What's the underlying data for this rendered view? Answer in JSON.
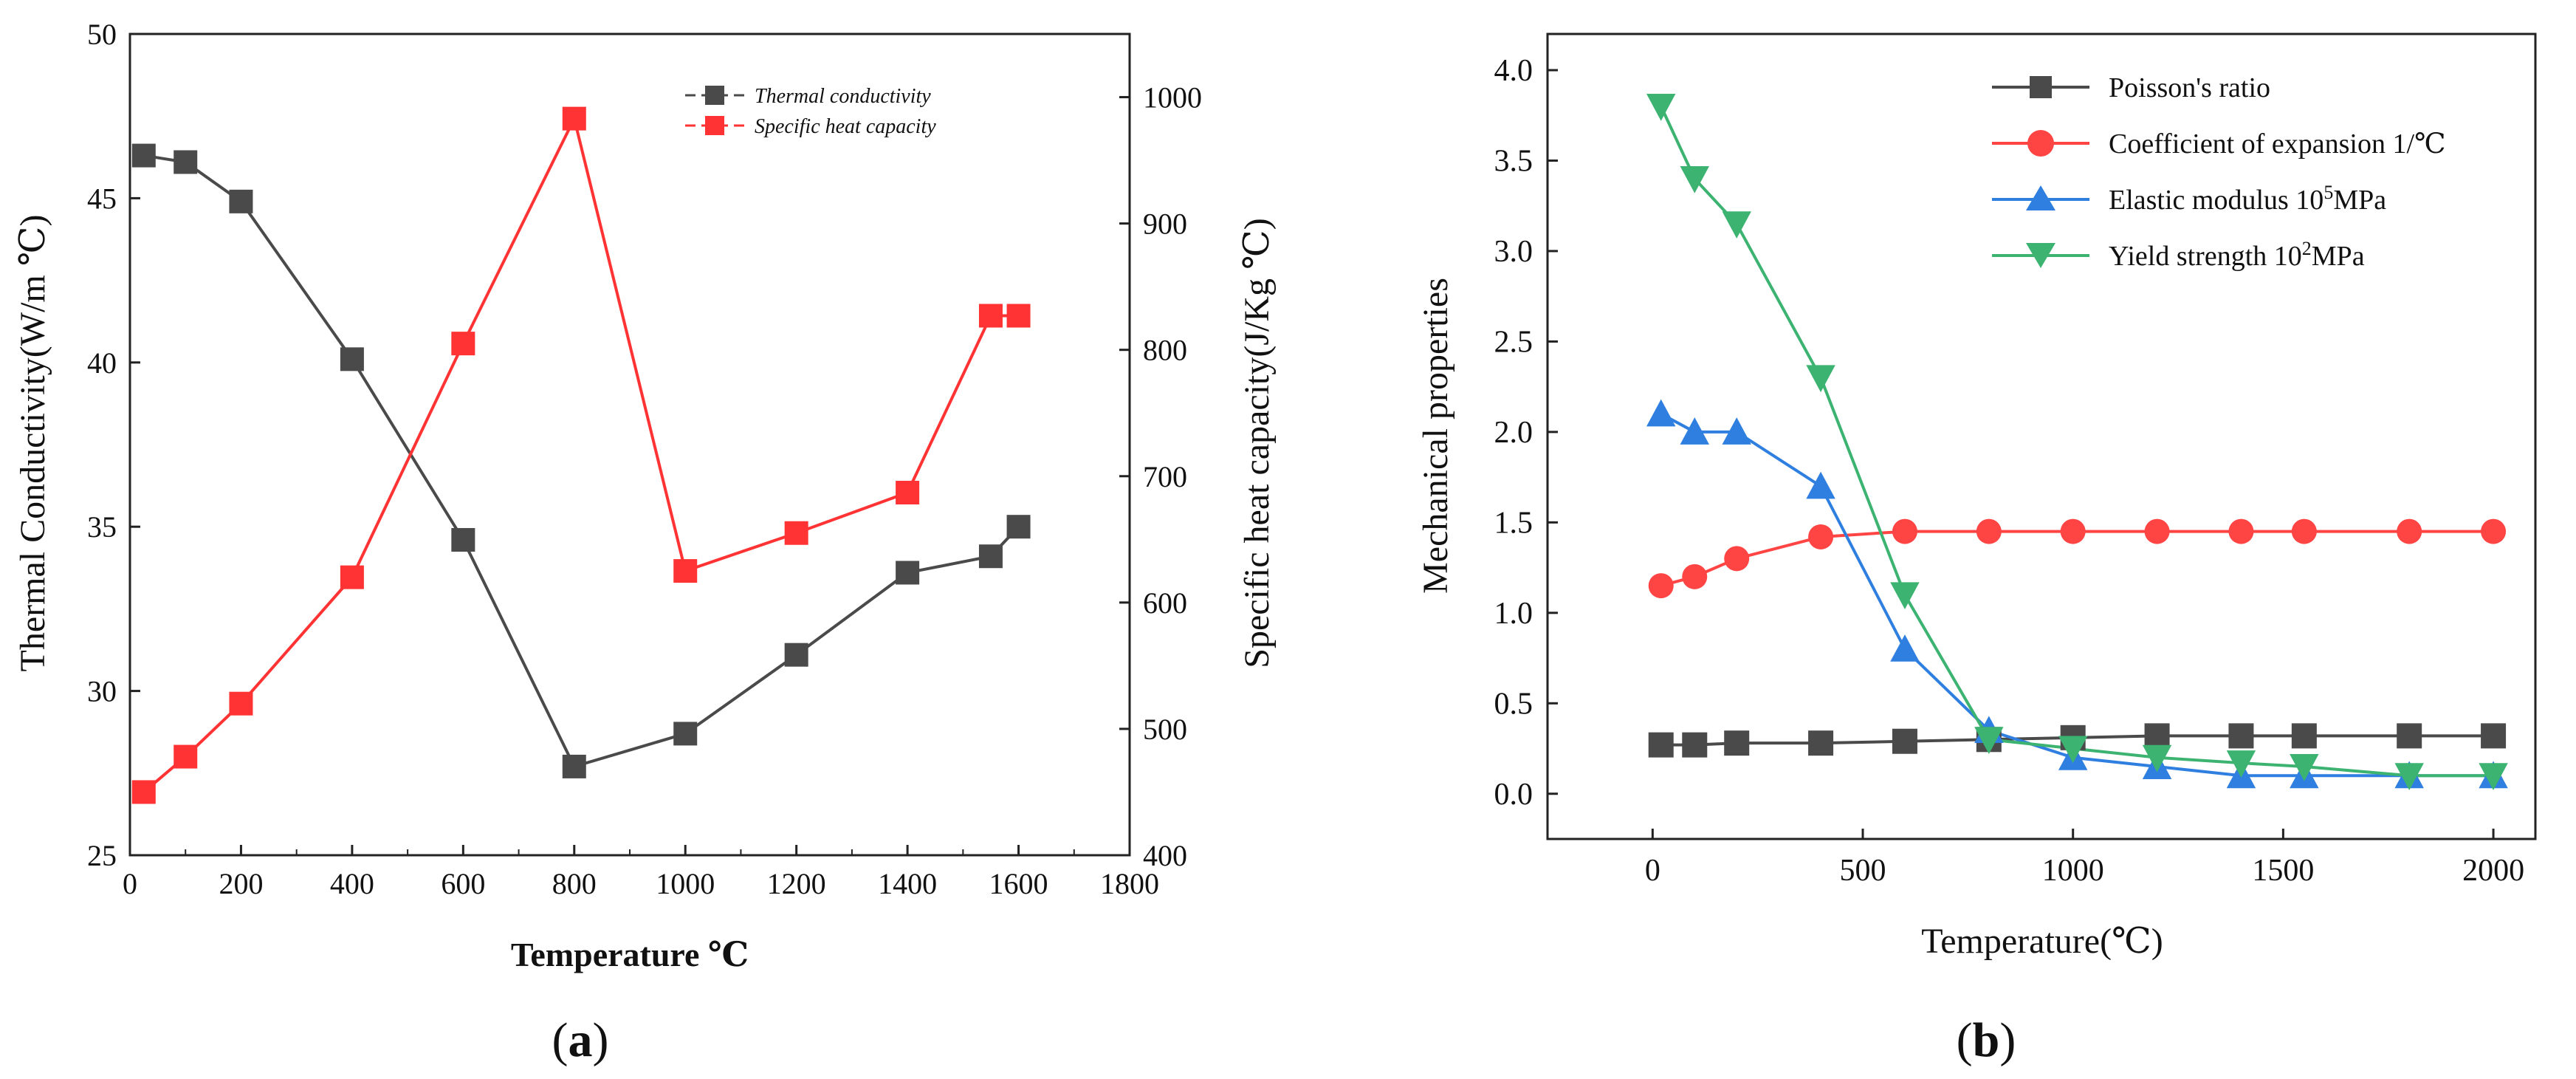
{
  "chart_data": [
    {
      "panel": "a",
      "type": "line",
      "panel_label": {
        "open": "(",
        "letter": "a",
        "close": ")"
      },
      "xlabel": "Temperature ℃",
      "ylabel_left": "Thermal Conductivity(W/m ℃)",
      "ylabel_right": "Specific heat capacity(J/Kg ℃)",
      "xlim": [
        0,
        1800
      ],
      "ylim_left": [
        25,
        50
      ],
      "ylim_right": [
        400,
        1050
      ],
      "x_ticks": [
        "0",
        "200",
        "400",
        "600",
        "800",
        "1000",
        "1200",
        "1400",
        "1600",
        "1800"
      ],
      "y_left_ticks": [
        "25",
        "30",
        "35",
        "40",
        "45",
        "50"
      ],
      "y_right_ticks": [
        "400",
        "500",
        "600",
        "700",
        "800",
        "900",
        "1000"
      ],
      "series": [
        {
          "name": "Thermal conductivity",
          "legend_label": "Thermal conductivity",
          "color": "#4a4a4a",
          "axis": "left",
          "marker": "square",
          "x": [
            25,
            100,
            200,
            400,
            600,
            800,
            1000,
            1200,
            1400,
            1550,
            1600
          ],
          "values": [
            46.3,
            46.1,
            44.9,
            40.1,
            34.6,
            27.7,
            28.7,
            31.1,
            33.6,
            34.1,
            35.0
          ]
        },
        {
          "name": "Specific heat capacity",
          "legend_label": "Specific heat capacity",
          "color": "#ff3333",
          "axis": "right",
          "marker": "square",
          "x": [
            25,
            100,
            200,
            400,
            600,
            800,
            1000,
            1200,
            1400,
            1550,
            1600
          ],
          "values": [
            450,
            478,
            520,
            620,
            805,
            983,
            625,
            655,
            687,
            827,
            827
          ]
        }
      ]
    },
    {
      "panel": "b",
      "type": "line",
      "panel_label": {
        "open": "(",
        "letter": "b",
        "close": ")"
      },
      "xlabel": "Temperature(℃)",
      "ylabel": "Mechanical  properties",
      "xlim": [
        -250,
        2100
      ],
      "ylim": [
        -0.25,
        4.2
      ],
      "x_ticks": [
        "0",
        "500",
        "1000",
        "1500",
        "2000"
      ],
      "y_ticks": [
        "0.0",
        "0.5",
        "1.0",
        "1.5",
        "2.0",
        "2.5",
        "3.0",
        "3.5",
        "4.0"
      ],
      "series": [
        {
          "name": "Poisson's ratio",
          "legend_label": "Poisson's ratio",
          "color": "#4a4a4a",
          "marker": "square",
          "x": [
            20,
            100,
            200,
            400,
            600,
            800,
            1000,
            1200,
            1400,
            1550,
            1800,
            2000
          ],
          "values": [
            0.27,
            0.27,
            0.28,
            0.28,
            0.29,
            0.3,
            0.31,
            0.32,
            0.32,
            0.32,
            0.32,
            0.32
          ]
        },
        {
          "name": "Coefficient of expansion 1/℃",
          "legend_label": "Coefficient of expansion 1/℃",
          "color": "#ff4444",
          "marker": "circle",
          "x": [
            20,
            100,
            200,
            400,
            600,
            800,
            1000,
            1200,
            1400,
            1550,
            1800,
            2000
          ],
          "values": [
            1.15,
            1.2,
            1.3,
            1.42,
            1.45,
            1.45,
            1.45,
            1.45,
            1.45,
            1.45,
            1.45,
            1.45
          ]
        },
        {
          "name": "Elastic modulus 10^5MPa",
          "legend_label": "Elastic modulus 10",
          "legend_sup": "5",
          "legend_suffix": "MPa",
          "color": "#2f7fe0",
          "marker": "triangle-up",
          "x": [
            20,
            100,
            200,
            400,
            600,
            800,
            1000,
            1200,
            1400,
            1550,
            1800,
            2000
          ],
          "values": [
            2.1,
            2.0,
            2.0,
            1.7,
            0.8,
            0.35,
            0.2,
            0.15,
            0.1,
            0.1,
            0.1,
            0.1
          ]
        },
        {
          "name": "Yield strength 10^2MPa",
          "legend_label": "Yield strength 10",
          "legend_sup": "2",
          "legend_suffix": "MPa",
          "color": "#3cb371",
          "marker": "triangle-down",
          "x": [
            20,
            100,
            200,
            400,
            600,
            800,
            1000,
            1200,
            1400,
            1550,
            1800,
            2000
          ],
          "values": [
            3.8,
            3.4,
            3.15,
            2.3,
            1.1,
            0.3,
            0.25,
            0.2,
            0.17,
            0.15,
            0.1,
            0.1
          ]
        }
      ]
    }
  ]
}
